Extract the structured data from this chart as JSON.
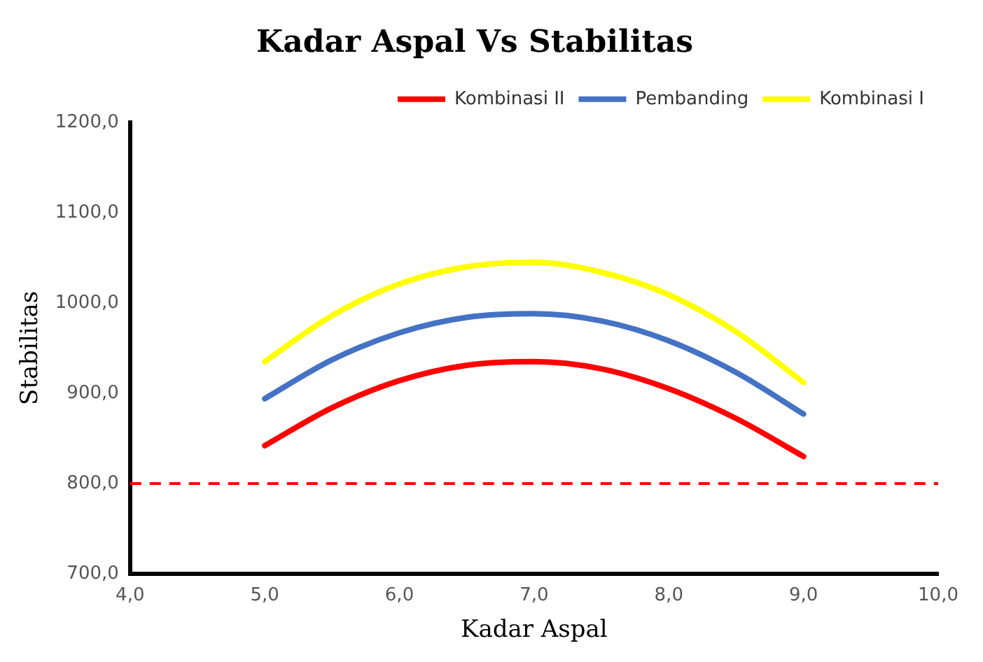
{
  "chart_data": {
    "type": "line",
    "title": "Kadar Aspal Vs Stabilitas",
    "xlabel": "Kadar Aspal",
    "ylabel": "Stabilitas",
    "x": [
      5,
      5.5,
      6,
      6.5,
      7,
      7.5,
      8,
      8.5,
      9
    ],
    "series": [
      {
        "name": "Kombinasi II",
        "color": "#ff0000",
        "values": [
          842,
          884,
          914,
          931,
          935,
          927,
          905,
          872,
          830
        ]
      },
      {
        "name": "Pembanding",
        "color": "#4472c4",
        "values": [
          894,
          937,
          967,
          984,
          988,
          980,
          958,
          923,
          877
        ]
      },
      {
        "name": "Kombinasi I",
        "color": "#ffff00",
        "values": [
          935,
          986,
          1021,
          1040,
          1045,
          1034,
          1009,
          968,
          912
        ]
      }
    ],
    "xlim": [
      4,
      10
    ],
    "xticks": [
      {
        "value": 4,
        "label": "4,0"
      },
      {
        "value": 5,
        "label": "5,0"
      },
      {
        "value": 6,
        "label": "6,0"
      },
      {
        "value": 7,
        "label": "7,0"
      },
      {
        "value": 8,
        "label": "8,0"
      },
      {
        "value": 9,
        "label": "9,0"
      },
      {
        "value": 10,
        "label": "10,0"
      }
    ],
    "ylim": [
      700,
      1200
    ],
    "yticks": [
      {
        "value": 700,
        "label": "700,0"
      },
      {
        "value": 800,
        "label": "800,0"
      },
      {
        "value": 900,
        "label": "900,0"
      },
      {
        "value": 1000,
        "label": "1000,0"
      },
      {
        "value": 1100,
        "label": "1100,0"
      },
      {
        "value": 1200,
        "label": "1200,0"
      }
    ],
    "ref_lines": [
      {
        "axis": "y",
        "value": 800,
        "color": "#ff0000",
        "line_style": "dashed"
      }
    ],
    "grid": false,
    "legend": "top right",
    "marker": "none",
    "line_style": "solid"
  }
}
